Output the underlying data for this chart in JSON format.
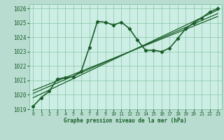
{
  "title": "Graphe pression niveau de la mer (hPa)",
  "bg_color": "#b8ddd0",
  "plot_bg_color": "#cdeee4",
  "grid_color": "#88c4a8",
  "line_color": "#1a5e2a",
  "xlim": [
    -0.5,
    23.5
  ],
  "ylim": [
    1019.0,
    1026.3
  ],
  "xticks": [
    0,
    1,
    2,
    3,
    4,
    5,
    6,
    7,
    8,
    9,
    10,
    11,
    12,
    13,
    14,
    15,
    16,
    17,
    18,
    19,
    20,
    21,
    22,
    23
  ],
  "yticks": [
    1019,
    1020,
    1021,
    1022,
    1023,
    1024,
    1025,
    1026
  ],
  "series_main": {
    "x": [
      0,
      1,
      2,
      3,
      4,
      5,
      6,
      7,
      8,
      9,
      10,
      11,
      12,
      13,
      14,
      15,
      16,
      17,
      18,
      19,
      20,
      21,
      22,
      23
    ],
    "y": [
      1019.2,
      1019.8,
      1020.25,
      1021.1,
      1021.2,
      1021.25,
      1021.65,
      1023.3,
      1025.1,
      1025.05,
      1024.85,
      1025.05,
      1024.6,
      1023.8,
      1023.1,
      1023.1,
      1023.0,
      1023.25,
      1023.9,
      1024.6,
      1025.0,
      1025.35,
      1025.75,
      1026.0
    ],
    "lw": 1.2
  },
  "series_lines": [
    {
      "x": [
        0,
        23
      ],
      "y": [
        1019.8,
        1025.9
      ]
    },
    {
      "x": [
        0,
        23
      ],
      "y": [
        1020.1,
        1025.65
      ]
    },
    {
      "x": [
        0,
        23
      ],
      "y": [
        1020.3,
        1025.45
      ]
    }
  ],
  "xlabel_fontsize": 5.5,
  "ytick_fontsize": 5.5,
  "xtick_fontsize": 4.8
}
